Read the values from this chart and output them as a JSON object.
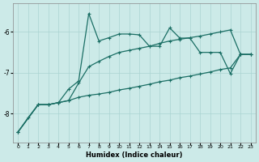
{
  "xlabel": "Humidex (Indice chaleur)",
  "background_color": "#cceae8",
  "grid_color": "#aad4d2",
  "line_color": "#1a6e64",
  "xlim": [
    -0.5,
    23.5
  ],
  "ylim": [
    -8.7,
    -5.3
  ],
  "yticks": [
    -8,
    -7,
    -6
  ],
  "xticks": [
    0,
    1,
    2,
    3,
    4,
    5,
    6,
    7,
    8,
    9,
    10,
    11,
    12,
    13,
    14,
    15,
    16,
    17,
    18,
    19,
    20,
    21,
    22,
    23
  ],
  "line1_x": [
    0,
    1,
    2,
    3,
    4,
    5,
    6,
    7,
    8,
    9,
    10,
    11,
    12,
    13,
    14,
    15,
    16,
    17,
    18,
    19,
    20,
    21,
    22,
    23
  ],
  "line1_y": [
    -8.45,
    -8.1,
    -7.78,
    -7.78,
    -7.73,
    -7.4,
    -7.2,
    -5.55,
    -6.22,
    -6.14,
    -6.05,
    -6.05,
    -6.07,
    -6.35,
    -6.35,
    -5.9,
    -6.15,
    -6.15,
    -6.5,
    -6.5,
    -6.5,
    -7.02,
    -6.55,
    -6.55
  ],
  "line2_x": [
    0,
    2,
    3,
    4,
    5,
    6,
    7,
    8,
    9,
    10,
    11,
    12,
    13,
    14,
    15,
    16,
    17,
    18,
    19,
    20,
    21,
    22,
    23
  ],
  "line2_y": [
    -8.45,
    -7.78,
    -7.78,
    -7.73,
    -7.68,
    -7.25,
    -6.85,
    -6.72,
    -6.6,
    -6.5,
    -6.45,
    -6.4,
    -6.35,
    -6.28,
    -6.22,
    -6.18,
    -6.14,
    -6.1,
    -6.05,
    -6.0,
    -5.95,
    -6.55,
    -6.55
  ],
  "line3_x": [
    0,
    2,
    3,
    4,
    5,
    6,
    7,
    8,
    9,
    10,
    11,
    12,
    13,
    14,
    15,
    16,
    17,
    18,
    19,
    20,
    21,
    22,
    23
  ],
  "line3_y": [
    -8.45,
    -7.78,
    -7.78,
    -7.73,
    -7.68,
    -7.6,
    -7.55,
    -7.52,
    -7.48,
    -7.42,
    -7.38,
    -7.33,
    -7.28,
    -7.22,
    -7.18,
    -7.12,
    -7.08,
    -7.03,
    -6.98,
    -6.92,
    -6.88,
    -6.55,
    -6.55
  ]
}
